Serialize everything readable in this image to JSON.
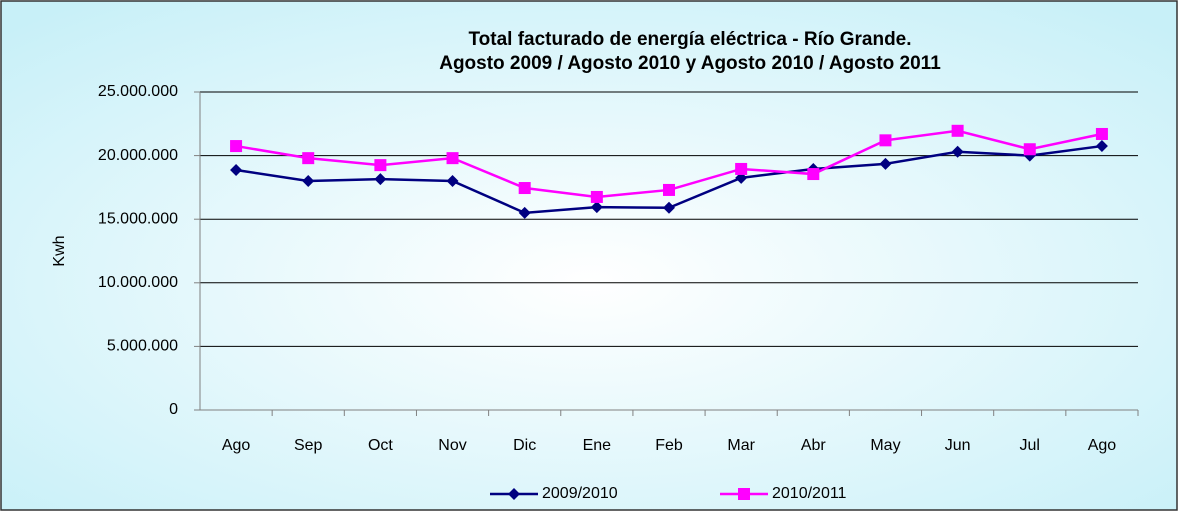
{
  "chart_data": {
    "type": "line",
    "title": "Total facturado de energía eléctrica - Río Grande.",
    "subtitle": "Agosto 2009 / Agosto 2010 y Agosto 2010 / Agosto 2011",
    "y_label": "Kwh",
    "categories": [
      "Ago",
      "Sep",
      "Oct",
      "Nov",
      "Dic",
      "Ene",
      "Feb",
      "Mar",
      "Abr",
      "May",
      "Jun",
      "Jul",
      "Ago"
    ],
    "series": [
      {
        "name": "2009/2010",
        "color": "#000080",
        "marker": "diamond",
        "values": [
          18870000,
          18000000,
          18150000,
          18000000,
          15500000,
          15950000,
          15900000,
          18250000,
          18950000,
          19350000,
          20300000,
          20000000,
          20750000
        ]
      },
      {
        "name": "2010/2011",
        "color": "#ff00ff",
        "marker": "square",
        "values": [
          20750000,
          19800000,
          19250000,
          19800000,
          17450000,
          16750000,
          17300000,
          18950000,
          18550000,
          21200000,
          21950000,
          20500000,
          21700000
        ]
      }
    ],
    "ylim": [
      0,
      25000000
    ],
    "yticks": [
      0,
      {
        "value": 5000000,
        "label": "5.000.000"
      },
      {
        "value": 10000000,
        "label": "10.000.000"
      },
      {
        "value": 15000000,
        "label": "15.000.000"
      },
      {
        "value": 20000000,
        "label": "20.000.000"
      },
      {
        "value": 25000000,
        "label": "25.000.000"
      }
    ],
    "grid": true,
    "legend": "bottom"
  }
}
